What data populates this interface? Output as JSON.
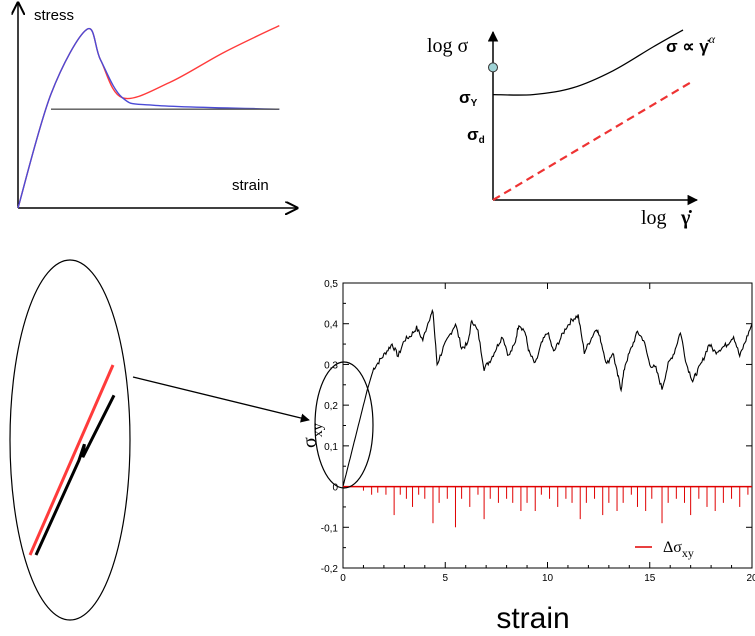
{
  "colors": {
    "red": "#ff3b3b",
    "blue": "#4b4bd6",
    "gray": "#555555",
    "black": "#000000",
    "dashed_red": "#ee3333",
    "marker_fill": "#9fd3d6",
    "spike_red": "#e00000"
  },
  "chart_data": [
    {
      "type": "line",
      "labels": {
        "y": "stress",
        "x": "strain"
      },
      "series": [
        {
          "color": "red",
          "points": [
            [
              0,
              0
            ],
            [
              0.12,
              0.6
            ],
            [
              0.25,
              0.94
            ],
            [
              0.3,
              0.78
            ],
            [
              0.38,
              0.58
            ],
            [
              0.55,
              0.66
            ],
            [
              0.75,
              0.82
            ],
            [
              0.95,
              0.96
            ]
          ]
        },
        {
          "color": "blue",
          "points": [
            [
              0,
              0
            ],
            [
              0.12,
              0.6
            ],
            [
              0.25,
              0.94
            ],
            [
              0.3,
              0.78
            ],
            [
              0.38,
              0.58
            ],
            [
              0.5,
              0.54
            ],
            [
              0.95,
              0.52
            ]
          ]
        },
        {
          "color": "gray",
          "points": [
            [
              0.12,
              0.52
            ],
            [
              0.95,
              0.52
            ]
          ]
        }
      ]
    },
    {
      "type": "line",
      "labels": {
        "y_axis": "log σ",
        "x_axis_prefix": "log",
        "x_axis_symbol": "γ̇",
        "formula_left": "σ ∝ ",
        "formula_symbol": "γ̇",
        "formula_exp": "α",
        "sigma_y": "σ",
        "sigma_y_sub": "Y",
        "sigma_d": "σ",
        "sigma_d_sub": "d"
      },
      "series": [
        {
          "style": "solid",
          "color": "black",
          "points": [
            [
              0,
              0.62
            ],
            [
              0.2,
              0.62
            ],
            [
              0.4,
              0.66
            ],
            [
              0.6,
              0.76
            ],
            [
              0.8,
              0.9
            ],
            [
              0.95,
              1.0
            ]
          ]
        },
        {
          "style": "dashed",
          "color": "dashed_red",
          "points": [
            [
              0,
              0
            ],
            [
              1,
              0.7
            ]
          ]
        }
      ],
      "marker": {
        "x": 0,
        "y": 0.78
      }
    },
    {
      "type": "line",
      "xlim": [
        0,
        20
      ],
      "ylim": [
        -0.2,
        0.5
      ],
      "xticks": [
        "0",
        "5",
        "10",
        "15",
        "20"
      ],
      "yticks": [
        "-0,2",
        "-0,1",
        "0",
        "0,1",
        "0,2",
        "0,3",
        "0,4",
        "0,5"
      ],
      "ylabel": "σ",
      "ylabel_sub": "xy",
      "xlabel": "strain",
      "legend": {
        "name": "Δσ",
        "name_sub": "xy",
        "color": "red",
        "placement": "lower-right"
      },
      "series": [
        {
          "name": "σxy",
          "color": "black",
          "points": [
            [
              0,
              0
            ],
            [
              0.3,
              0.06
            ],
            [
              0.6,
              0.12
            ],
            [
              0.9,
              0.18
            ],
            [
              1.2,
              0.24
            ],
            [
              1.5,
              0.29
            ],
            [
              1.8,
              0.31
            ],
            [
              2.1,
              0.33
            ],
            [
              2.4,
              0.35
            ],
            [
              2.7,
              0.32
            ],
            [
              3.0,
              0.36
            ],
            [
              3.3,
              0.37
            ],
            [
              3.6,
              0.39
            ],
            [
              3.9,
              0.36
            ],
            [
              4.2,
              0.41
            ],
            [
              4.4,
              0.43
            ],
            [
              4.6,
              0.3
            ],
            [
              4.9,
              0.34
            ],
            [
              5.2,
              0.37
            ],
            [
              5.5,
              0.4
            ],
            [
              5.8,
              0.34
            ],
            [
              6.1,
              0.35
            ],
            [
              6.3,
              0.41
            ],
            [
              6.6,
              0.38
            ],
            [
              6.9,
              0.29
            ],
            [
              7.2,
              0.31
            ],
            [
              7.5,
              0.34
            ],
            [
              7.8,
              0.37
            ],
            [
              8.1,
              0.32
            ],
            [
              8.4,
              0.35
            ],
            [
              8.6,
              0.4
            ],
            [
              8.9,
              0.38
            ],
            [
              9.1,
              0.33
            ],
            [
              9.4,
              0.3
            ],
            [
              9.7,
              0.35
            ],
            [
              10.0,
              0.38
            ],
            [
              10.3,
              0.33
            ],
            [
              10.6,
              0.36
            ],
            [
              10.9,
              0.39
            ],
            [
              11.2,
              0.41
            ],
            [
              11.5,
              0.42
            ],
            [
              11.8,
              0.33
            ],
            [
              12.1,
              0.36
            ],
            [
              12.4,
              0.39
            ],
            [
              12.6,
              0.36
            ],
            [
              12.9,
              0.3
            ],
            [
              13.2,
              0.33
            ],
            [
              13.4,
              0.28
            ],
            [
              13.6,
              0.24
            ],
            [
              13.8,
              0.3
            ],
            [
              14.1,
              0.34
            ],
            [
              14.4,
              0.38
            ],
            [
              14.7,
              0.36
            ],
            [
              15.0,
              0.3
            ],
            [
              15.3,
              0.29
            ],
            [
              15.6,
              0.24
            ],
            [
              15.9,
              0.3
            ],
            [
              16.2,
              0.33
            ],
            [
              16.5,
              0.38
            ],
            [
              16.8,
              0.3
            ],
            [
              17.1,
              0.26
            ],
            [
              17.3,
              0.28
            ],
            [
              17.6,
              0.31
            ],
            [
              17.9,
              0.35
            ],
            [
              18.2,
              0.33
            ],
            [
              18.5,
              0.34
            ],
            [
              18.8,
              0.35
            ],
            [
              19.1,
              0.37
            ],
            [
              19.4,
              0.32
            ],
            [
              19.7,
              0.36
            ],
            [
              20.0,
              0.4
            ]
          ]
        },
        {
          "name": "Δσxy",
          "color": "red",
          "spikes": [
            [
              1.0,
              -0.01
            ],
            [
              1.4,
              -0.02
            ],
            [
              1.7,
              -0.015
            ],
            [
              2.1,
              -0.02
            ],
            [
              2.5,
              -0.07
            ],
            [
              2.8,
              -0.02
            ],
            [
              3.1,
              -0.03
            ],
            [
              3.4,
              -0.05
            ],
            [
              3.7,
              -0.02
            ],
            [
              4.0,
              -0.03
            ],
            [
              4.4,
              -0.09
            ],
            [
              4.7,
              -0.04
            ],
            [
              5.1,
              -0.03
            ],
            [
              5.5,
              -0.1
            ],
            [
              5.8,
              -0.03
            ],
            [
              6.2,
              -0.05
            ],
            [
              6.6,
              -0.02
            ],
            [
              6.9,
              -0.08
            ],
            [
              7.2,
              -0.03
            ],
            [
              7.6,
              -0.04
            ],
            [
              8.0,
              -0.03
            ],
            [
              8.3,
              -0.04
            ],
            [
              8.7,
              -0.06
            ],
            [
              9.0,
              -0.04
            ],
            [
              9.4,
              -0.06
            ],
            [
              9.7,
              -0.02
            ],
            [
              10.1,
              -0.03
            ],
            [
              10.5,
              -0.05
            ],
            [
              10.9,
              -0.03
            ],
            [
              11.2,
              -0.04
            ],
            [
              11.6,
              -0.08
            ],
            [
              11.9,
              -0.04
            ],
            [
              12.3,
              -0.03
            ],
            [
              12.7,
              -0.07
            ],
            [
              13.0,
              -0.04
            ],
            [
              13.4,
              -0.06
            ],
            [
              13.7,
              -0.04
            ],
            [
              14.1,
              -0.02
            ],
            [
              14.4,
              -0.05
            ],
            [
              14.8,
              -0.06
            ],
            [
              15.1,
              -0.03
            ],
            [
              15.6,
              -0.09
            ],
            [
              15.9,
              -0.04
            ],
            [
              16.3,
              -0.03
            ],
            [
              16.7,
              -0.04
            ],
            [
              17.0,
              -0.07
            ],
            [
              17.4,
              -0.03
            ],
            [
              17.8,
              -0.05
            ],
            [
              18.2,
              -0.06
            ],
            [
              18.6,
              -0.04
            ],
            [
              19.0,
              -0.03
            ],
            [
              19.4,
              -0.05
            ],
            [
              19.8,
              -0.02
            ]
          ]
        }
      ]
    },
    {
      "type": "line",
      "series": [
        {
          "color": "red",
          "points": [
            [
              0,
              0
            ],
            [
              1,
              1
            ]
          ]
        },
        {
          "color": "black",
          "points": [
            [
              0,
              0
            ],
            [
              0.55,
              0.58
            ],
            [
              0.62,
              0.68
            ],
            [
              0.6,
              0.6
            ],
            [
              1,
              0.98
            ]
          ]
        }
      ]
    }
  ]
}
